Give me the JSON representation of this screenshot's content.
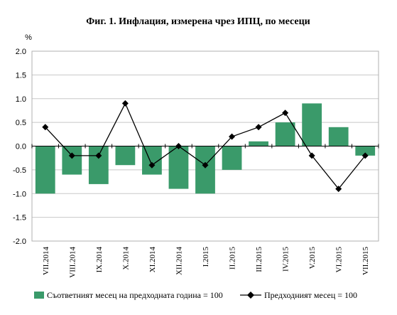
{
  "chart_data": {
    "type": "bar",
    "title": "Фиг. 1. Инфлация, измерена чрез ИПЦ, по месеци",
    "ylabel": "%",
    "ylim": [
      -2.0,
      2.0
    ],
    "yticks": [
      "2.0",
      "1.5",
      "1.0",
      "0.5",
      "0.0",
      "-0.5",
      "-1.0",
      "-1.5",
      "-2.0"
    ],
    "ytick_values": [
      2.0,
      1.5,
      1.0,
      0.5,
      0.0,
      -0.5,
      -1.0,
      -1.5,
      -2.0
    ],
    "categories": [
      "VII.2014",
      "VIII.2014",
      "IX.2014",
      "X.2014",
      "XI.2014",
      "XII.2014",
      "I.2015",
      "II.2015",
      "III.2015",
      "IV.2015",
      "V.2015",
      "VI.2015",
      "VII.2015"
    ],
    "grid": true,
    "legend_position": "bottom",
    "series": [
      {
        "name": "Съответният месец на предходната година = 100",
        "type": "bar",
        "color": "#3a9a6a",
        "values": [
          -1.0,
          -0.6,
          -0.8,
          -0.4,
          -0.6,
          -0.9,
          -1.0,
          -0.5,
          0.1,
          0.5,
          0.9,
          0.4,
          -0.2
        ]
      },
      {
        "name": "Предходният месец = 100",
        "type": "line",
        "color": "#000000",
        "marker": "diamond",
        "values": [
          0.4,
          -0.2,
          -0.2,
          0.9,
          -0.4,
          0.0,
          -0.4,
          0.2,
          0.4,
          0.7,
          -0.2,
          -0.9,
          -0.2
        ]
      }
    ]
  }
}
